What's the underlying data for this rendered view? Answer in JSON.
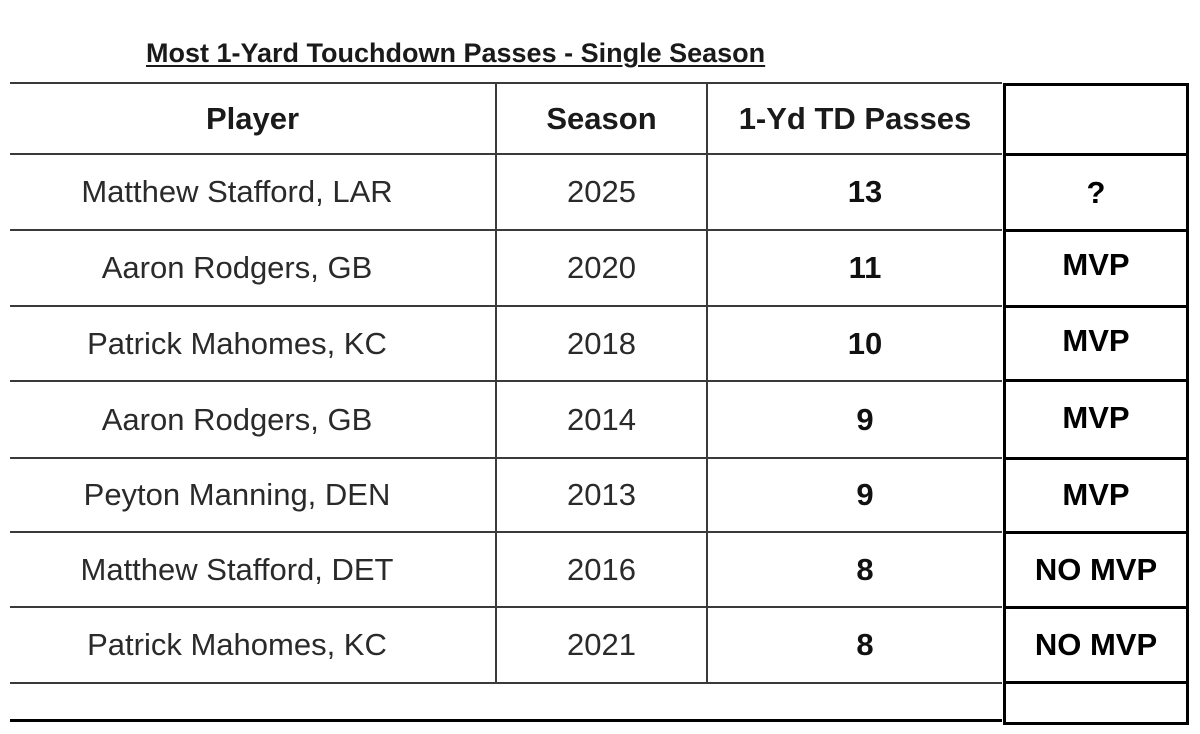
{
  "title": "Most 1-Yard Touchdown Passes - Single Season",
  "table": {
    "columns": [
      "Player",
      "Season",
      "1-Yd TD Passes",
      ""
    ],
    "rows": [
      {
        "player": "Matthew Stafford, LAR",
        "season": "2025",
        "td_passes": "13",
        "mvp": "?"
      },
      {
        "player": "Aaron Rodgers, GB",
        "season": "2020",
        "td_passes": "11",
        "mvp": "MVP"
      },
      {
        "player": "Patrick Mahomes, KC",
        "season": "2018",
        "td_passes": "10",
        "mvp": "MVP"
      },
      {
        "player": "Aaron Rodgers, GB",
        "season": "2014",
        "td_passes": "9",
        "mvp": "MVP"
      },
      {
        "player": "Peyton Manning, DEN",
        "season": "2013",
        "td_passes": "9",
        "mvp": "MVP"
      },
      {
        "player": "Matthew Stafford, DET",
        "season": "2016",
        "td_passes": "8",
        "mvp": "NO MVP"
      },
      {
        "player": "Patrick Mahomes, KC",
        "season": "2021",
        "td_passes": "8",
        "mvp": "NO MVP"
      }
    ]
  }
}
